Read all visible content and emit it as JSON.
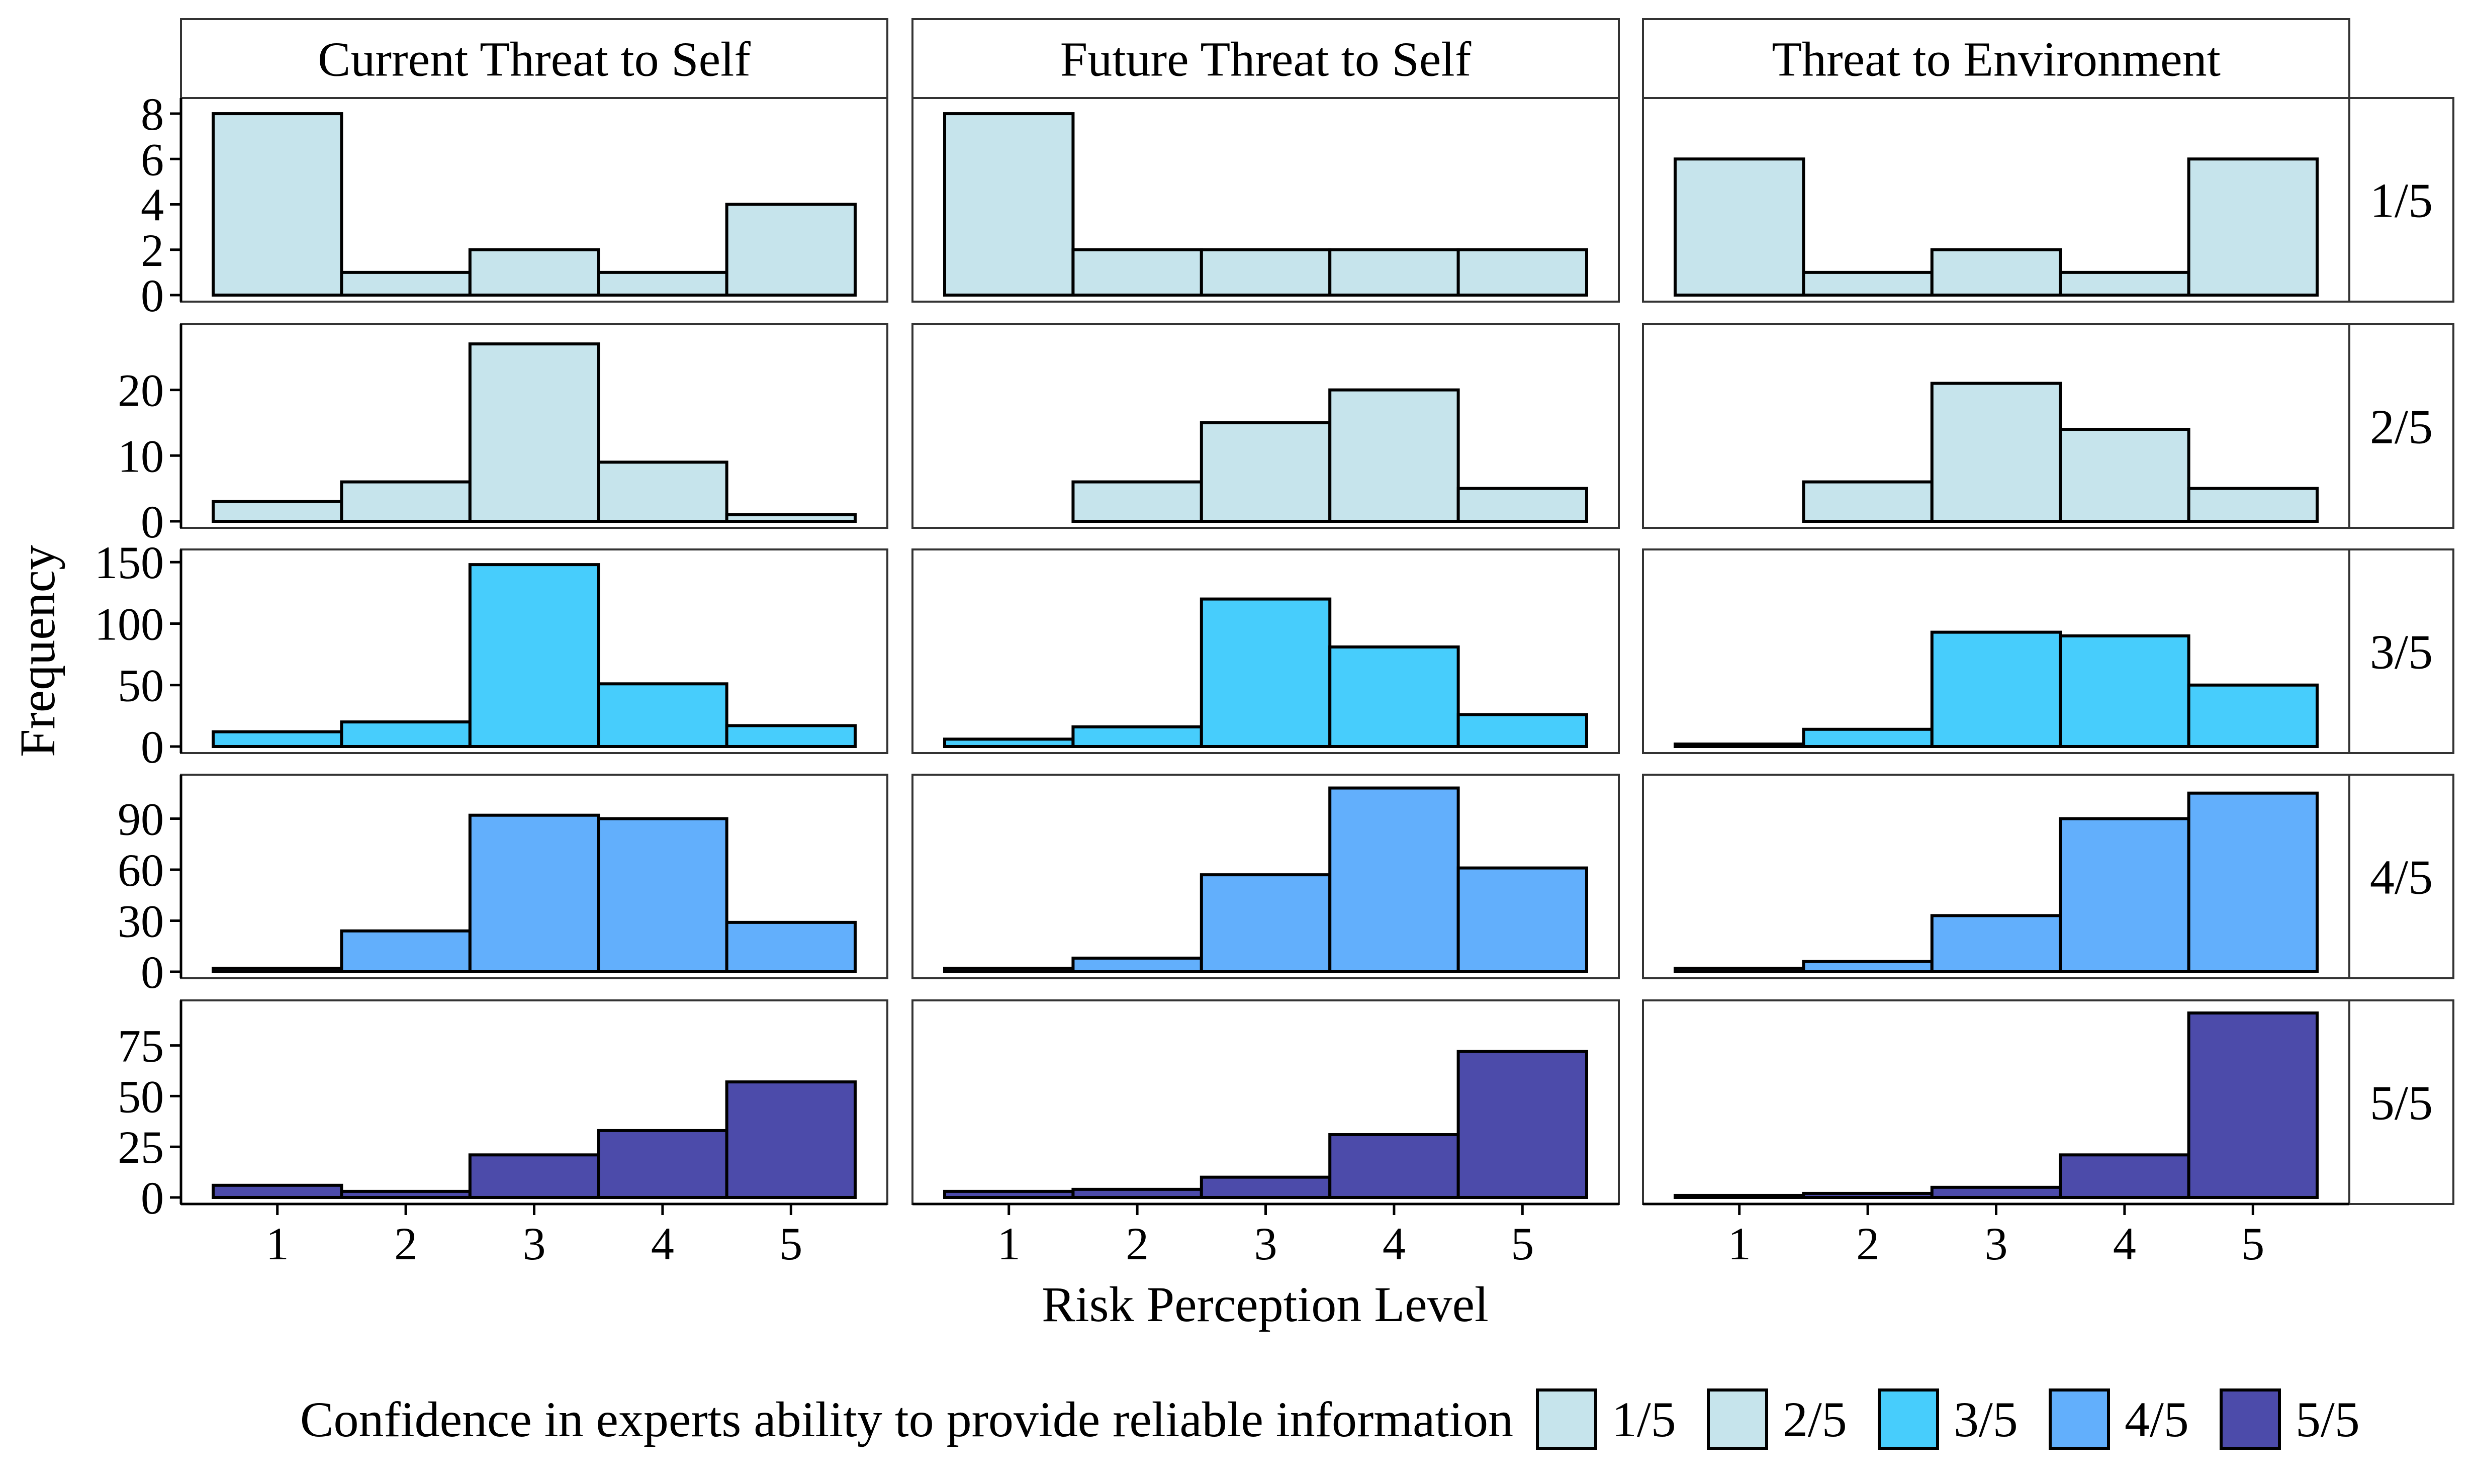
{
  "chart_data": {
    "type": "bar",
    "subtype": "faceted-histogram",
    "xlabel": "Risk Perception Level",
    "ylabel": "Frequency",
    "categories": [
      "1",
      "2",
      "3",
      "4",
      "5"
    ],
    "columns": [
      "Current Threat to Self",
      "Future Threat to Self",
      "Threat to Environment"
    ],
    "rows": [
      "1/5",
      "2/5",
      "3/5",
      "4/5",
      "5/5"
    ],
    "row_scales": [
      {
        "ylim": [
          0,
          8.4
        ],
        "ticks": [
          0,
          2,
          4,
          6,
          8
        ]
      },
      {
        "ylim": [
          0,
          29
        ],
        "ticks": [
          0,
          10,
          20
        ]
      },
      {
        "ylim": [
          0,
          155
        ],
        "ticks": [
          0,
          50,
          100,
          150
        ]
      },
      {
        "ylim": [
          0,
          112
        ],
        "ticks": [
          0,
          30,
          60,
          90
        ]
      },
      {
        "ylim": [
          0,
          94
        ],
        "ticks": [
          0,
          25,
          50,
          75
        ]
      }
    ],
    "panels": [
      [
        [
          8,
          1,
          2,
          1,
          4
        ],
        [
          8,
          2,
          2,
          2,
          2
        ],
        [
          6,
          1,
          2,
          1,
          6
        ]
      ],
      [
        [
          3,
          6,
          27,
          9,
          1
        ],
        [
          0,
          6,
          15,
          20,
          5
        ],
        [
          0,
          6,
          21,
          14,
          5
        ]
      ],
      [
        [
          12,
          20,
          148,
          51,
          17
        ],
        [
          6,
          16,
          120,
          81,
          26
        ],
        [
          2,
          14,
          93,
          90,
          50
        ]
      ],
      [
        [
          2,
          24,
          92,
          90,
          29
        ],
        [
          2,
          8,
          57,
          108,
          61
        ],
        [
          2,
          6,
          33,
          90,
          105
        ]
      ],
      [
        [
          6,
          3,
          21,
          33,
          57
        ],
        [
          3,
          4,
          10,
          31,
          72
        ],
        [
          1,
          2,
          5,
          21,
          91
        ]
      ]
    ],
    "legend": {
      "title": "Confidence in experts ability to provide reliable information",
      "position": "bottom",
      "entries": [
        "1/5",
        "2/5",
        "3/5",
        "4/5",
        "5/5"
      ]
    },
    "colors": {
      "1/5": "#C6E4EC",
      "2/5": "#C6E4EC",
      "3/5": "#47CDFC",
      "4/5": "#62AFFC",
      "5/5": "#4C4BAA"
    },
    "grid": false
  }
}
